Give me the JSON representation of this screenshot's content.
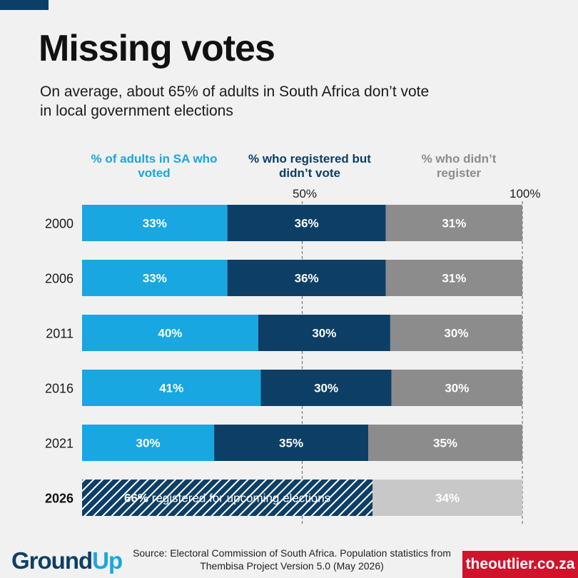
{
  "title": "Missing votes",
  "subtitle": "On average, about 65% of adults in South Africa don’t vote in local government elections",
  "legend": {
    "voted": "% of adults in SA who voted",
    "registered_not_voted": "% who registered but didn’t vote",
    "not_registered": "% who didn’t register"
  },
  "axis": {
    "mid": "50%",
    "max": "100%"
  },
  "colors": {
    "voted": "#18a7e0",
    "registered_not_voted": "#0d3f66",
    "not_registered": "#8c8c8c",
    "not_registered_2026": "#c8c8c8",
    "brand_red": "#d0132b"
  },
  "chart_data": {
    "type": "bar",
    "orientation": "horizontal",
    "stacked": true,
    "xlim": [
      0,
      100
    ],
    "gridlines": [
      50,
      100
    ],
    "categories": [
      "2000",
      "2006",
      "2011",
      "2016",
      "2021"
    ],
    "series": [
      {
        "name": "% of adults in SA who voted",
        "values": [
          33,
          33,
          40,
          41,
          30
        ]
      },
      {
        "name": "% who registered but didn’t vote",
        "values": [
          36,
          36,
          30,
          30,
          35
        ]
      },
      {
        "name": "% who didn’t register",
        "values": [
          31,
          31,
          30,
          30,
          35
        ]
      }
    ],
    "extra_row": {
      "category": "2026",
      "registered": 66,
      "registered_label_value": "66%",
      "registered_label_text": "registered for upcoming elections",
      "not_registered": 34
    }
  },
  "footer": {
    "logo_ground": "Ground",
    "logo_up": "Up",
    "source": "Source: Electoral Commission of South Africa. Population statistics from Thembisa Project Version 5.0 (May 2026)",
    "brand": "theoutlier.co.za"
  }
}
